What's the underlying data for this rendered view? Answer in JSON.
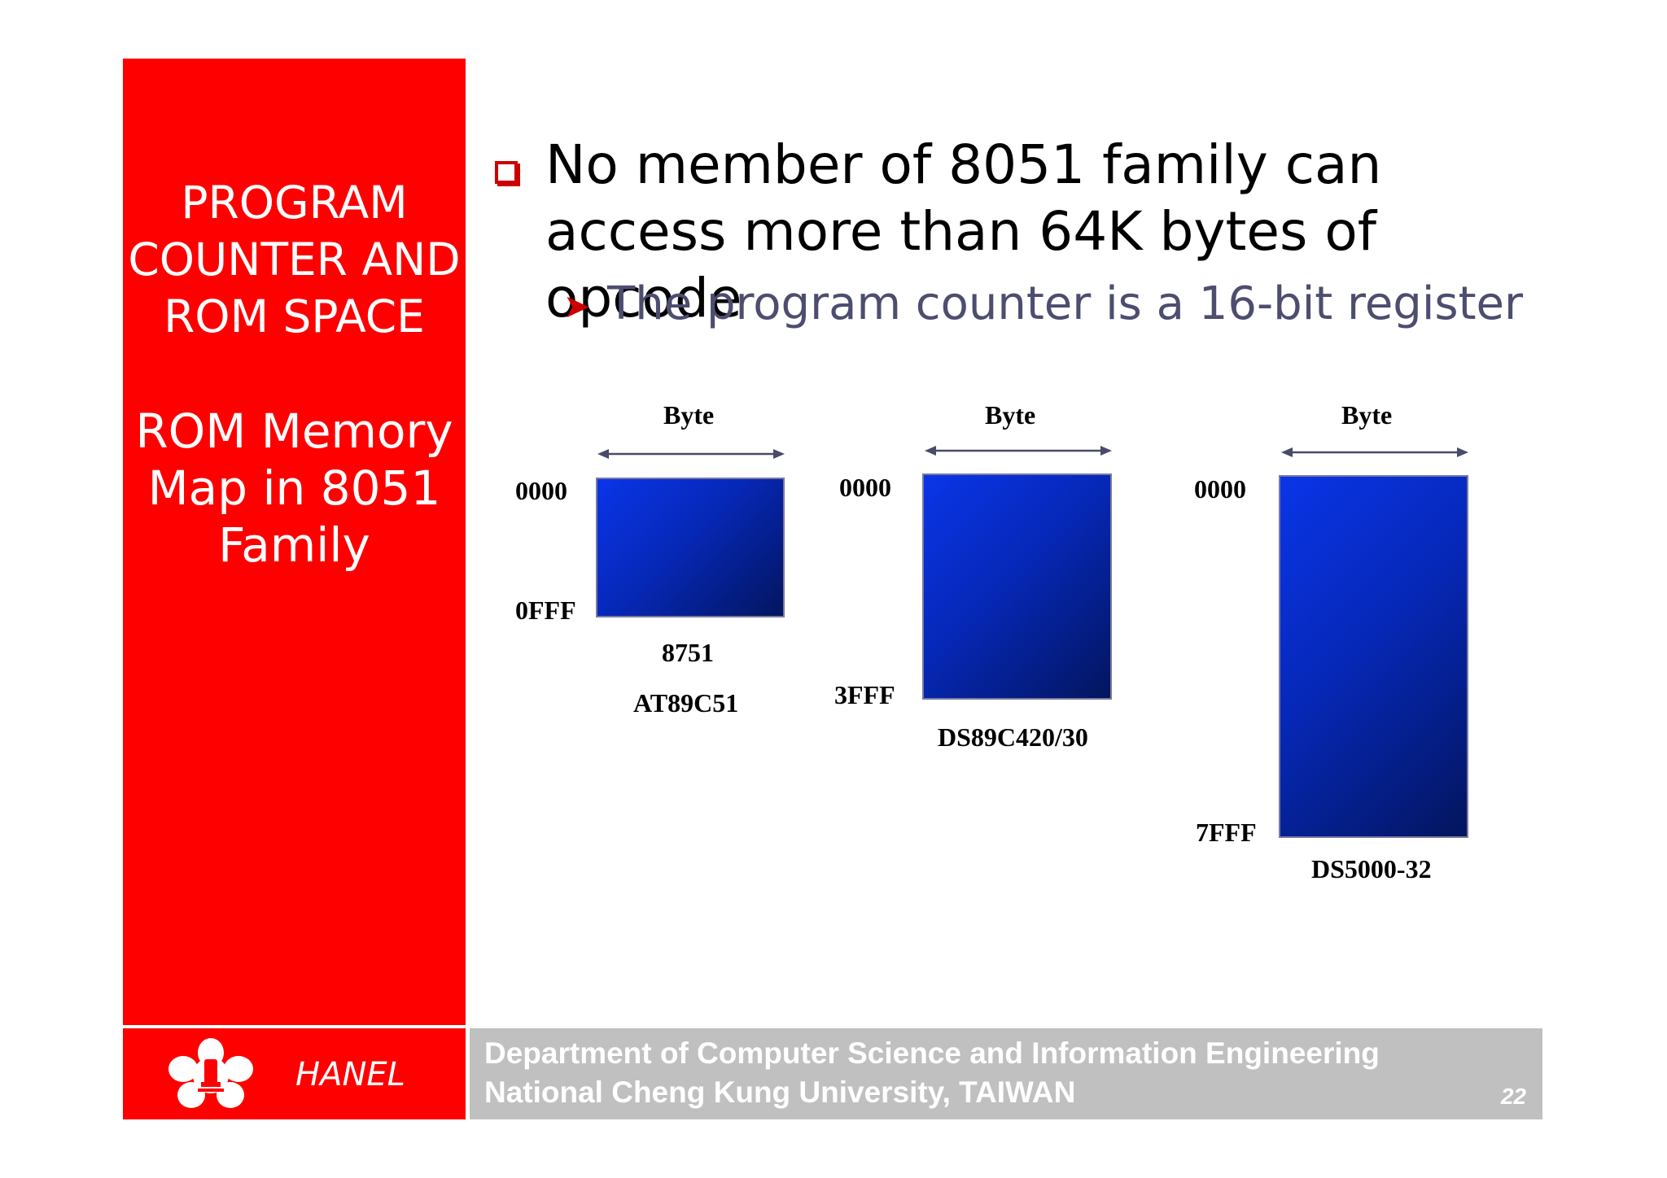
{
  "sidebar": {
    "title": [
      "PROGRAM",
      "COUNTER AND",
      "ROM SPACE"
    ],
    "subtitle": [
      "ROM Memory",
      "Map in 8051",
      "Family"
    ]
  },
  "content": {
    "bullet_main": "No member of 8051 family can access more than 64K bytes of opcode",
    "bullet_sub": "The program counter is a 16-bit register"
  },
  "memory_maps": [
    {
      "width_label": "Byte",
      "start": "0000",
      "end": "0FFF",
      "chips": [
        "8751",
        "AT89C51"
      ]
    },
    {
      "width_label": "Byte",
      "start": "0000",
      "end": "3FFF",
      "chips": [
        "DS89C420/30"
      ]
    },
    {
      "width_label": "Byte",
      "start": "0000",
      "end": "7FFF",
      "chips": [
        "DS5000-32"
      ]
    }
  ],
  "footer": {
    "brand": "HANEL",
    "line1": "Department of Computer Science and Information Engineering",
    "line2": "National Cheng Kung University, TAIWAN",
    "page": "22"
  },
  "colors": {
    "accent_red": "#ff0000",
    "footer_gray": "#c0c0c0",
    "block_blue": "#0628b8"
  }
}
